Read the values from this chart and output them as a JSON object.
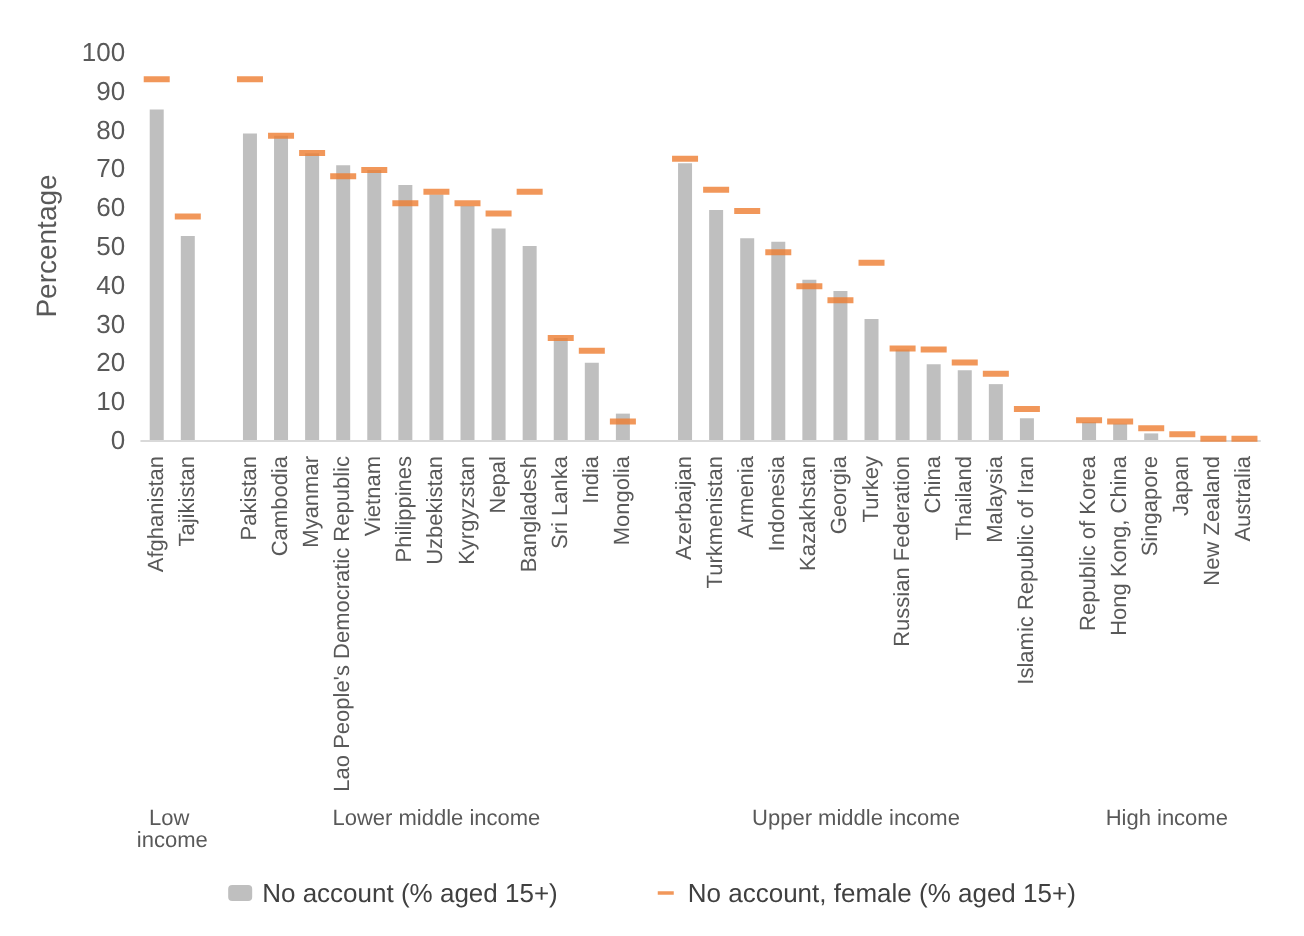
{
  "chart_data": {
    "type": "bar",
    "ylabel": "Percentage",
    "categories": [
      "Afghanistan",
      "Tajikistan",
      null,
      "Pakistan",
      "Cambodia",
      "Myanmar",
      "Lao People's Democratic Republic",
      "Vietnam",
      "Philippines",
      "Uzbekistan",
      "Kyrgyzstan",
      "Nepal",
      "Bangladesh",
      "Sri Lanka",
      "India",
      "Mongolia",
      null,
      "Azerbaijan",
      "Turkmenistan",
      "Armenia",
      "Indonesia",
      "Kazakhstan",
      "Georgia",
      "Turkey",
      "Russian Federation",
      "China",
      "Thailand",
      "Malaysia",
      "Islamic Republic of Iran",
      null,
      "Republic of Korea",
      "Hong Kong, China",
      "Singapore",
      "Japan",
      "New Zealand",
      "Australia"
    ],
    "series": [
      {
        "name": "No account (% aged 15+)",
        "color": "#bfbfbf",
        "values": [
          85.2,
          52.6,
          null,
          79,
          78.4,
          73.9,
          70.8,
          69.6,
          65.7,
          63.3,
          60.3,
          54.5,
          50,
          26.3,
          19.9,
          6.8,
          null,
          71.3,
          59.3,
          52,
          51.1,
          41.3,
          38.4,
          31.2,
          23.3,
          19.5,
          18,
          14.4,
          5.6,
          null,
          4.6,
          4.2,
          1.7,
          null,
          null,
          null
        ]
      },
      {
        "name": "No account, female (% aged 15+)",
        "type": "scatter",
        "color": "#ed7d31",
        "values": [
          93,
          57.6,
          null,
          93,
          78.4,
          74,
          68,
          69.6,
          61,
          64,
          61,
          58.4,
          64,
          26.3,
          23,
          4.8,
          null,
          72.5,
          64.5,
          59,
          48.4,
          39.6,
          36,
          45.7,
          23.6,
          23.3,
          20,
          17.1,
          8,
          null,
          5.1,
          4.8,
          3,
          1.5,
          0.3,
          0.3
        ]
      }
    ],
    "annotations": [
      "Low income",
      "Lower middle income",
      "Upper middle income",
      "High income"
    ],
    "ylim": [
      0,
      100
    ],
    "yticks": [
      0,
      10,
      20,
      30,
      40,
      50,
      60,
      70,
      80,
      90,
      100
    ],
    "grid": false,
    "legend": "bottom"
  }
}
